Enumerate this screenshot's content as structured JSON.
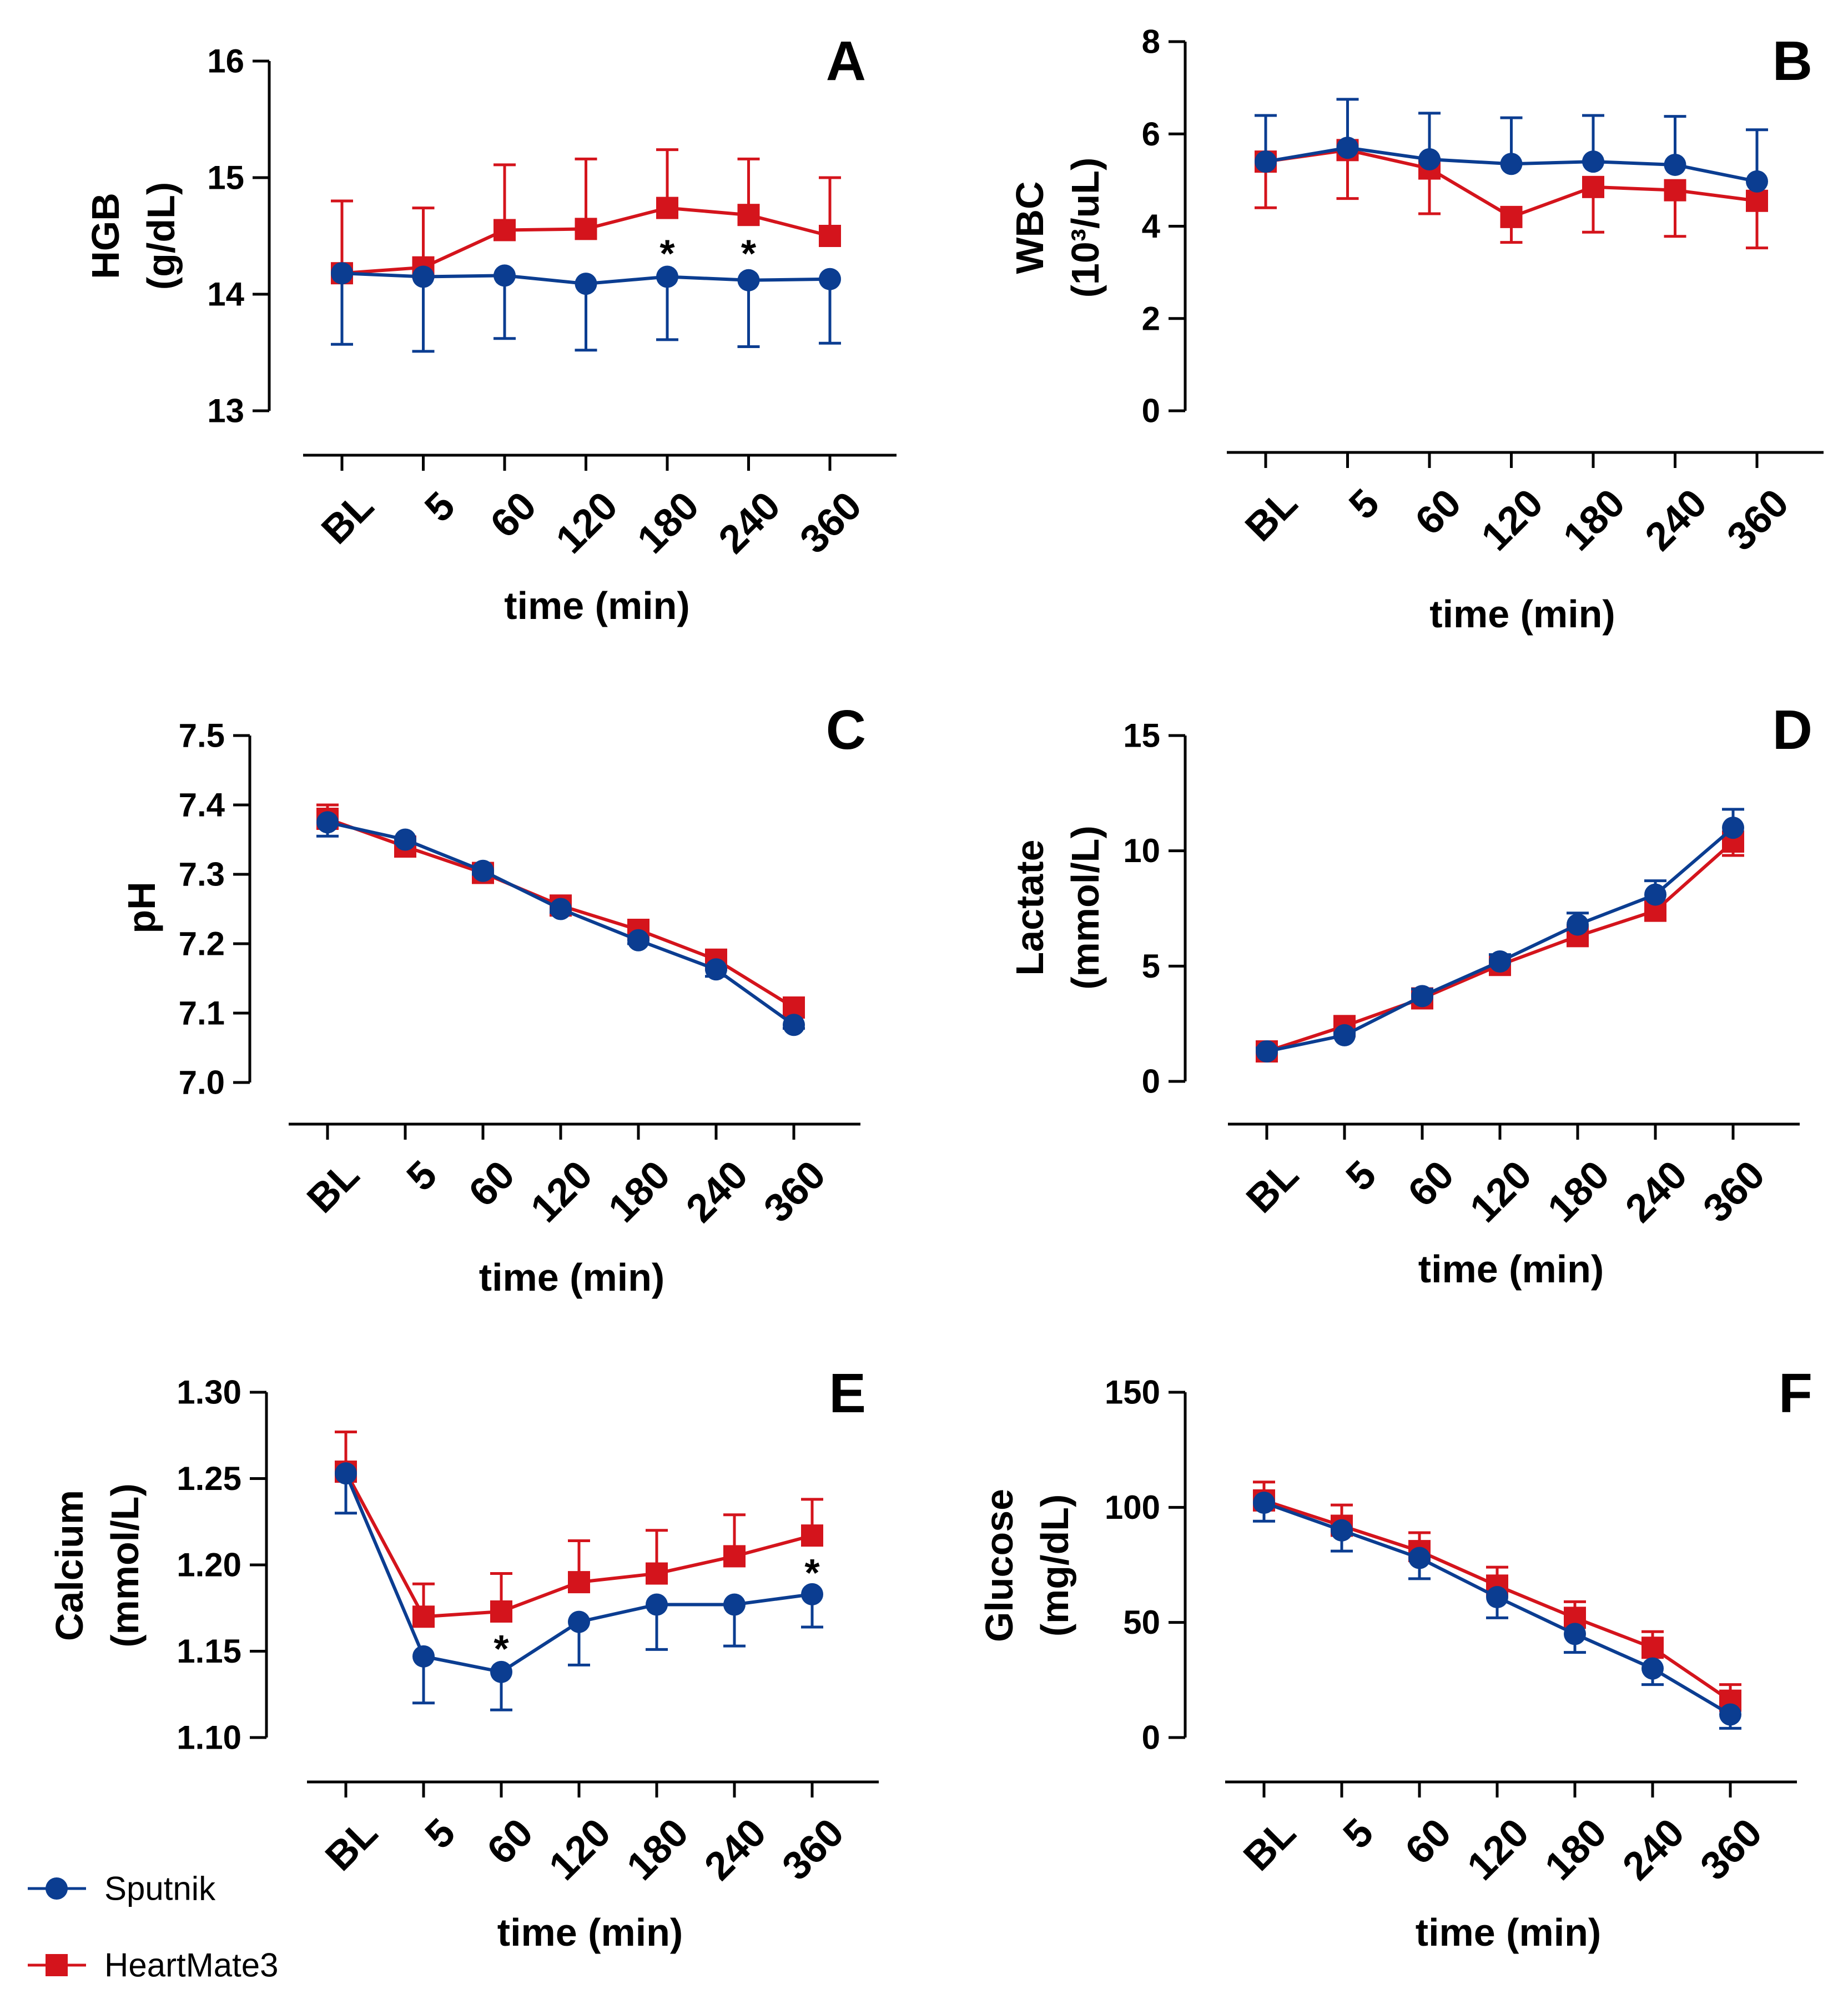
{
  "colors": {
    "sputnik": "#0b3d91",
    "heartmate3": "#d4141c",
    "axis": "#000000"
  },
  "legend": [
    {
      "key": "sputnik",
      "label": "Sputnik",
      "marker": "circle"
    },
    {
      "key": "heartmate3",
      "label": "HeartMate3",
      "marker": "square"
    }
  ],
  "chart_data": [
    {
      "type": "line",
      "letter": "A",
      "title": "",
      "ylabel": [
        "HGB",
        "(g/dL)"
      ],
      "xlabel": "time (min)",
      "categories": [
        "BL",
        "5",
        "60",
        "120",
        "180",
        "240",
        "360"
      ],
      "ylim": [
        13,
        16
      ],
      "yticks": [
        13,
        14,
        15,
        16
      ],
      "ytick_labels": [
        "13",
        "14",
        "15",
        "16"
      ],
      "series": [
        {
          "name": "Sputnik",
          "key": "sputnik",
          "values": [
            14.18,
            14.15,
            14.16,
            14.09,
            14.15,
            14.12,
            14.13
          ],
          "err_low": [
            0.61,
            0.64,
            0.54,
            0.57,
            0.54,
            0.57,
            0.55
          ],
          "err_high": [
            0,
            0,
            0,
            0,
            0,
            0,
            0
          ]
        },
        {
          "name": "HeartMate3",
          "key": "heartmate3",
          "values": [
            14.18,
            14.23,
            14.55,
            14.56,
            14.74,
            14.68,
            14.5
          ],
          "err_low": [
            0,
            0,
            0,
            0,
            0,
            0,
            0
          ],
          "err_high": [
            0.62,
            0.51,
            0.56,
            0.6,
            0.5,
            0.48,
            0.5
          ]
        }
      ],
      "annotations": [
        {
          "text": "*",
          "category": "180",
          "y": 14.35
        },
        {
          "text": "*",
          "category": "240",
          "y": 14.35
        }
      ]
    },
    {
      "type": "line",
      "letter": "B",
      "title": "",
      "ylabel": [
        "WBC",
        "(10³/uL)"
      ],
      "xlabel": "time (min)",
      "categories": [
        "BL",
        "5",
        "60",
        "120",
        "180",
        "240",
        "360"
      ],
      "ylim": [
        0,
        8
      ],
      "yticks": [
        0,
        2,
        4,
        6,
        8
      ],
      "ytick_labels": [
        "0",
        "2",
        "4",
        "6",
        "8"
      ],
      "series": [
        {
          "name": "Sputnik",
          "key": "sputnik",
          "values": [
            5.4,
            5.7,
            5.45,
            5.35,
            5.4,
            5.33,
            4.97
          ],
          "err_low": [
            0,
            0,
            0,
            0,
            0,
            0,
            0
          ],
          "err_high": [
            1.0,
            1.05,
            1.0,
            1.0,
            1.0,
            1.05,
            1.12
          ]
        },
        {
          "name": "HeartMate3",
          "key": "heartmate3",
          "values": [
            5.4,
            5.65,
            5.25,
            4.2,
            4.85,
            4.78,
            4.55
          ],
          "err_low": [
            1.0,
            1.05,
            0.98,
            0.55,
            0.98,
            1.0,
            1.02
          ],
          "err_high": [
            0,
            0,
            0,
            0,
            0,
            0,
            0
          ]
        }
      ],
      "annotations": []
    },
    {
      "type": "line",
      "letter": "C",
      "title": "",
      "ylabel": [
        "pH"
      ],
      "xlabel": "time (min)",
      "categories": [
        "BL",
        "5",
        "60",
        "120",
        "180",
        "240",
        "360"
      ],
      "ylim": [
        7.0,
        7.5
      ],
      "yticks": [
        7.0,
        7.1,
        7.2,
        7.3,
        7.4,
        7.5
      ],
      "ytick_labels": [
        "7.0",
        "7.1",
        "7.2",
        "7.3",
        "7.4",
        "7.5"
      ],
      "series": [
        {
          "name": "Sputnik",
          "key": "sputnik",
          "values": [
            7.375,
            7.35,
            7.305,
            7.25,
            7.205,
            7.163,
            7.083
          ],
          "err_low": [
            0.02,
            0.005,
            0.005,
            0.005,
            0.005,
            0.01,
            0.005
          ],
          "err_high": [
            0,
            0,
            0,
            0,
            0,
            0,
            0
          ]
        },
        {
          "name": "HeartMate3",
          "key": "heartmate3",
          "values": [
            7.38,
            7.34,
            7.302,
            7.255,
            7.22,
            7.177,
            7.108
          ],
          "err_low": [
            0,
            0,
            0,
            0,
            0,
            0,
            0
          ],
          "err_high": [
            0.02,
            0.005,
            0.005,
            0.005,
            0.005,
            0.005,
            0.005
          ]
        }
      ],
      "annotations": []
    },
    {
      "type": "line",
      "letter": "D",
      "title": "",
      "ylabel": [
        "Lactate",
        "(mmol/L)"
      ],
      "xlabel": "time (min)",
      "categories": [
        "BL",
        "5",
        "60",
        "120",
        "180",
        "240",
        "360"
      ],
      "ylim": [
        0,
        15
      ],
      "yticks": [
        0,
        5,
        10,
        15
      ],
      "ytick_labels": [
        "0",
        "5",
        "10",
        "15"
      ],
      "series": [
        {
          "name": "Sputnik",
          "key": "sputnik",
          "values": [
            1.3,
            2.0,
            3.7,
            5.2,
            6.8,
            8.1,
            11.0
          ],
          "err_low": [
            0,
            0,
            0,
            0,
            0,
            0,
            0
          ],
          "err_high": [
            0.15,
            0.1,
            0.3,
            0.3,
            0.5,
            0.6,
            0.8
          ]
        },
        {
          "name": "HeartMate3",
          "key": "heartmate3",
          "values": [
            1.3,
            2.4,
            3.6,
            5.05,
            6.3,
            7.4,
            10.4
          ],
          "err_low": [
            0.15,
            0.15,
            0.3,
            0.4,
            0.4,
            0.4,
            0.6
          ],
          "err_high": [
            0,
            0,
            0,
            0,
            0,
            0,
            0
          ]
        }
      ],
      "annotations": []
    },
    {
      "type": "line",
      "letter": "E",
      "title": "",
      "ylabel": [
        "Calcium",
        "(mmol/L)"
      ],
      "xlabel": "time (min)",
      "categories": [
        "BL",
        "5",
        "60",
        "120",
        "180",
        "240",
        "360"
      ],
      "ylim": [
        1.1,
        1.3
      ],
      "yticks": [
        1.1,
        1.15,
        1.2,
        1.25,
        1.3
      ],
      "ytick_labels": [
        "1.10",
        "1.15",
        "1.20",
        "1.25",
        "1.30"
      ],
      "series": [
        {
          "name": "Sputnik",
          "key": "sputnik",
          "values": [
            1.253,
            1.147,
            1.138,
            1.167,
            1.177,
            1.177,
            1.183
          ],
          "err_low": [
            0.023,
            0.027,
            0.022,
            0.025,
            0.026,
            0.024,
            0.019
          ],
          "err_high": [
            0,
            0,
            0,
            0,
            0,
            0,
            0
          ]
        },
        {
          "name": "HeartMate3",
          "key": "heartmate3",
          "values": [
            1.254,
            1.17,
            1.173,
            1.19,
            1.195,
            1.205,
            1.217
          ],
          "err_low": [
            0,
            0,
            0,
            0,
            0,
            0,
            0
          ],
          "err_high": [
            0.023,
            0.019,
            0.022,
            0.024,
            0.025,
            0.024,
            0.021
          ]
        }
      ],
      "annotations": [
        {
          "text": "*",
          "category": "60",
          "y": 1.1515
        },
        {
          "text": "*",
          "category": "360",
          "y": 1.1955
        }
      ]
    },
    {
      "type": "line",
      "letter": "F",
      "title": "",
      "ylabel": [
        "Glucose",
        "(mg/dL)"
      ],
      "xlabel": "time (min)",
      "categories": [
        "BL",
        "5",
        "60",
        "120",
        "180",
        "240",
        "360"
      ],
      "ylim": [
        0,
        150
      ],
      "yticks": [
        0,
        50,
        100,
        150
      ],
      "ytick_labels": [
        "0",
        "50",
        "100",
        "150"
      ],
      "series": [
        {
          "name": "Sputnik",
          "key": "sputnik",
          "values": [
            102,
            90,
            78,
            61,
            45,
            30,
            10
          ],
          "err_low": [
            8,
            9,
            9,
            9,
            8,
            7,
            6
          ],
          "err_high": [
            0,
            0,
            0,
            0,
            0,
            0,
            0
          ]
        },
        {
          "name": "HeartMate3",
          "key": "heartmate3",
          "values": [
            103,
            92,
            81,
            66,
            52,
            39,
            16
          ],
          "err_low": [
            0,
            0,
            0,
            0,
            0,
            0,
            0
          ],
          "err_high": [
            8,
            9,
            8,
            8,
            7,
            7,
            7
          ]
        }
      ],
      "annotations": []
    }
  ]
}
